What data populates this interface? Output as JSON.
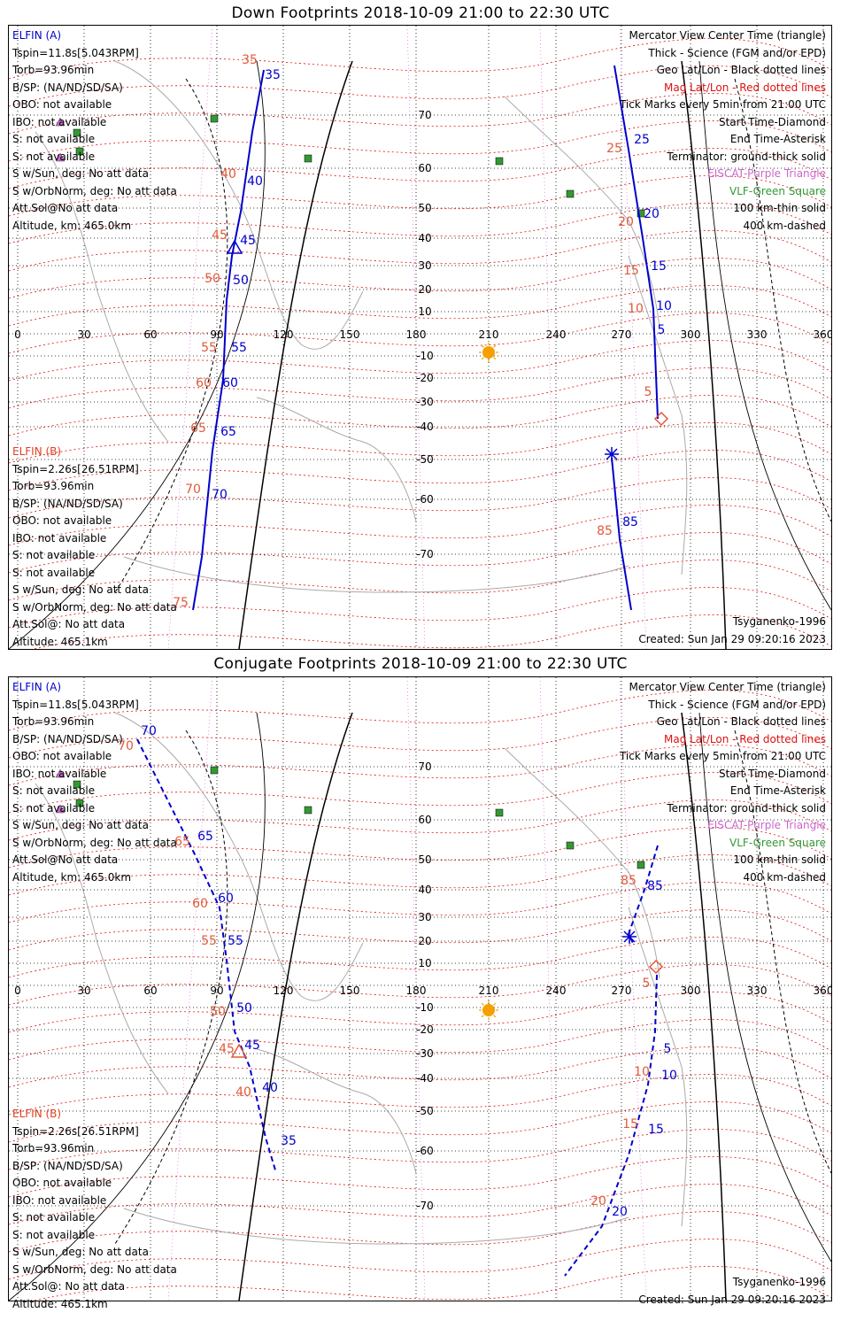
{
  "panels": [
    {
      "title": "Down Footprints 2018-10-09 21:00 to 22:30 UTC",
      "elfin_a": [
        "ELFIN (A)",
        "Tspin=11.8s[5.043RPM]",
        "Torb=93.96min",
        "B/SP: (NA/ND/SD/SA)",
        "OBO: not available",
        "IBO: not available",
        "S: not available",
        "S: not available",
        "S w/Sun, deg: No att data",
        "S w/OrbNorm, deg: No att data",
        "Att.Sol@No att data",
        "Altitude, km: 465.0km"
      ],
      "elfin_b": [
        "ELFIN (B)",
        "Tspin=2.26s[26.51RPM]",
        "Torb=93.96min",
        "B/SP: (NA/ND/SD/SA)",
        "OBO: not available",
        "IBO: not available",
        "S: not available",
        "S: not available",
        "S w/Sun, deg: No att data",
        "S w/OrbNorm, deg: No att data",
        "Att.Sol@: No att data",
        "Altitude: 465.1km"
      ]
    },
    {
      "title": "Conjugate Footprints 2018-10-09 21:00 to 22:30 UTC",
      "elfin_a": [
        "ELFIN (A)",
        "Tspin=11.8s[5.043RPM]",
        "Torb=93.96min",
        "B/SP: (NA/ND/SD/SA)",
        "OBO: not available",
        "IBO: not available",
        "S: not available",
        "S: not available",
        "S w/Sun, deg: No att data",
        "S w/OrbNorm, deg: No att data",
        "Att.Sol@No att data",
        "Altitude, km: 465.0km"
      ],
      "elfin_b": [
        "ELFIN (B)",
        "Tspin=2.26s[26.51RPM]",
        "Torb=93.96min",
        "B/SP: (NA/ND/SD/SA)",
        "OBO: not available",
        "IBO: not available",
        "S: not available",
        "S: not available",
        "S w/Sun, deg: No att data",
        "S w/OrbNorm, deg: No att data",
        "Att.Sol@: No att data",
        "Altitude: 465.1km"
      ]
    }
  ],
  "legend": [
    {
      "text": "Mercator View Center Time (triangle)",
      "color": "#000000"
    },
    {
      "text": "Thick - Science (FGM and/or EPD)",
      "color": "#000000"
    },
    {
      "text": "Geo Lat/Lon - Black dotted lines",
      "color": "#000000"
    },
    {
      "text": "Mag Lat/Lon - Red dotted lines",
      "color": "#dd1111"
    },
    {
      "text": "Tick Marks every 5min from 21:00 UTC",
      "color": "#000000"
    },
    {
      "text": "Start Time-Diamond",
      "color": "#000000"
    },
    {
      "text": "End Time-Asterisk",
      "color": "#000000"
    },
    {
      "text": "Terminator: ground-thick solid",
      "color": "#000000"
    },
    {
      "text": "EISCAT-Purple Triangle",
      "color": "#cc66cc"
    },
    {
      "text": "VLF-Green Square",
      "color": "#339933"
    },
    {
      "text": "100 km-thin solid",
      "color": "#000000"
    },
    {
      "text": "400 km-dashed",
      "color": "#000000"
    }
  ],
  "model": "Tsyganenko-1996",
  "created": "Created: Sun Jan 29 09:20:16 2023",
  "lon_labels": [
    "0",
    "30",
    "60",
    "90",
    "120",
    "150",
    "180",
    "210",
    "240",
    "270",
    "300",
    "330",
    "360"
  ],
  "lat_labels": [
    "70",
    "60",
    "50",
    "40",
    "30",
    "20",
    "10",
    "-10",
    "-20",
    "-30",
    "-40",
    "-50",
    "-60",
    "-70"
  ],
  "colors": {
    "elfin_a_track": "#0000cc",
    "mag_label": "#e05a3a",
    "mag_grid": "#dd1111",
    "geo_grid": "#000000",
    "sun": "#f5a000",
    "vlf": "#339933",
    "eiscat": "#cc66cc"
  },
  "icons": [
    "sun-icon",
    "eiscat-triangle-icon",
    "vlf-square-icon",
    "start-diamond-icon",
    "end-asterisk-icon",
    "center-triangle-icon"
  ],
  "tracks": {
    "down": {
      "west_ticks_blue": [
        "35",
        "40",
        "45",
        "50",
        "55",
        "60",
        "65",
        "70"
      ],
      "west_ticks_red": [
        "35",
        "40",
        "45",
        "50",
        "55",
        "60",
        "65",
        "70",
        "75"
      ],
      "east_ticks_blue": [
        "25",
        "20",
        "15",
        "10",
        "5",
        "85"
      ],
      "east_ticks_red": [
        "25",
        "20",
        "15",
        "10",
        "5",
        "85"
      ]
    },
    "conj": {
      "west_ticks_blue": [
        "70",
        "65",
        "60",
        "55",
        "50",
        "45",
        "40",
        "35"
      ],
      "west_ticks_red": [
        "70",
        "65",
        "60",
        "55",
        "50",
        "45",
        "40"
      ],
      "east_ticks_blue": [
        "85",
        "5",
        "10",
        "15",
        "20"
      ],
      "east_ticks_red": [
        "85",
        "5",
        "10",
        "15",
        "20"
      ]
    }
  }
}
